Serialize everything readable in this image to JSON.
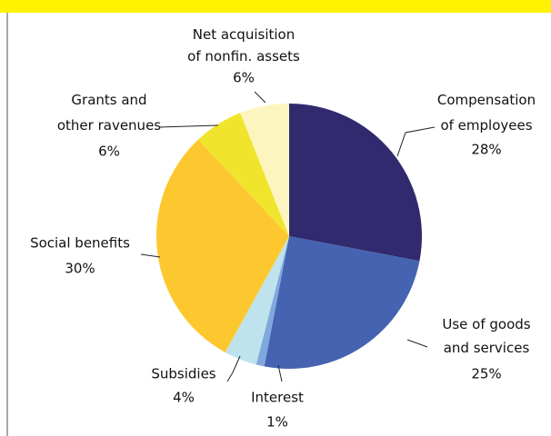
{
  "chart_data": {
    "type": "pie",
    "categories": [
      "Compensation of employees",
      "Use of goods and services",
      "Interest",
      "Subsidies",
      "Social benefits",
      "Grants and other ravenues",
      "Net acquisition of nonfin. assets"
    ],
    "values": [
      28,
      25,
      1,
      4,
      30,
      6,
      6
    ],
    "value_labels": [
      "28%",
      "25%",
      "1%",
      "4%",
      "30%",
      "6%",
      "6%"
    ],
    "colors": [
      "#312a6e",
      "#4563b0",
      "#7fa8dc",
      "#bfe3ec",
      "#fdc82f",
      "#f0e52c",
      "#fdf5c0"
    ]
  }
}
